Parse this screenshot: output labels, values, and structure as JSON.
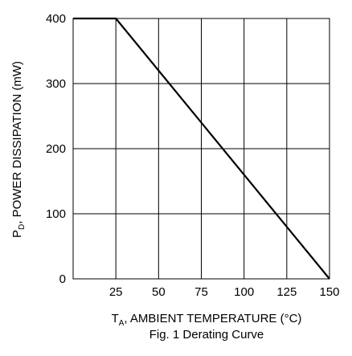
{
  "chart_data": {
    "type": "line",
    "title": "",
    "caption": "Fig. 1  Derating Curve",
    "xlabel": {
      "main": "T",
      "sub": "A",
      "rest": ", AMBIENT TEMPERATURE (°C)"
    },
    "ylabel": {
      "main": "P",
      "sub": "D",
      "rest": ", POWER DISSIPATION (mW)"
    },
    "xlim": [
      0,
      150
    ],
    "ylim": [
      0,
      400
    ],
    "x_ticks": [
      25,
      50,
      75,
      100,
      125,
      150
    ],
    "y_ticks": [
      0,
      100,
      200,
      300,
      400
    ],
    "grid": true,
    "series": [
      {
        "x": [
          0,
          25,
          150
        ],
        "y": [
          400,
          400,
          0
        ]
      }
    ]
  }
}
